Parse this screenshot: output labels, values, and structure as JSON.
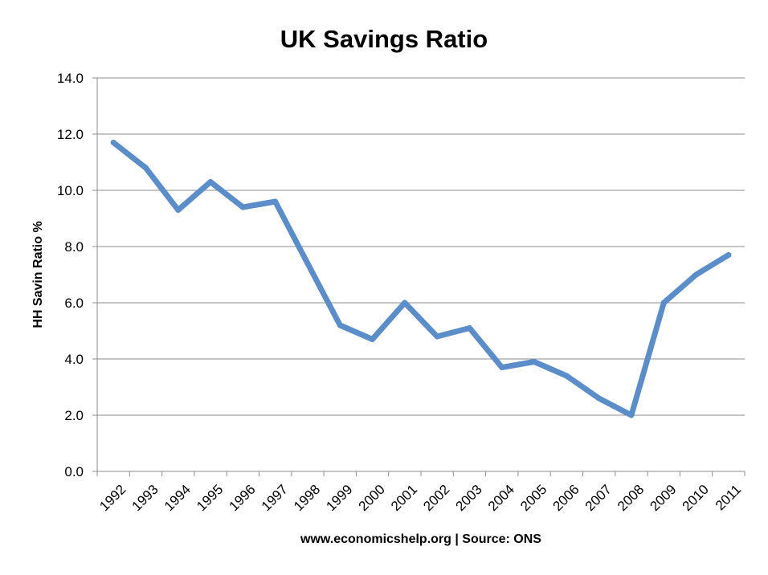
{
  "chart_data": {
    "type": "line",
    "title": "UK Savings Ratio",
    "xlabel": "www.economicshelp.org | Source: ONS",
    "ylabel": "HH Savin Ratio %",
    "categories": [
      "1992",
      "1993",
      "1994",
      "1995",
      "1996",
      "1997",
      "1998",
      "1999",
      "2000",
      "2001",
      "2002",
      "2003",
      "2004",
      "2005",
      "2006",
      "2007",
      "2008",
      "2009",
      "2010",
      "2011"
    ],
    "y_ticks": [
      "0.0",
      "2.0",
      "4.0",
      "6.0",
      "8.0",
      "10.0",
      "12.0",
      "14.0"
    ],
    "ylim": [
      0,
      14
    ],
    "grid": true,
    "legend": "none",
    "series": [
      {
        "values": [
          11.7,
          10.8,
          9.3,
          10.3,
          9.4,
          9.6,
          7.4,
          5.2,
          4.7,
          6.0,
          4.8,
          5.1,
          3.7,
          3.9,
          3.4,
          2.6,
          2.0,
          6.0,
          7.0,
          7.7
        ],
        "color": "#5b8ec9"
      }
    ],
    "colors": {
      "line": "#5b8ec9",
      "grid": "#8c8c8c",
      "axis": "#8c8c8c",
      "text": "#000000"
    }
  }
}
